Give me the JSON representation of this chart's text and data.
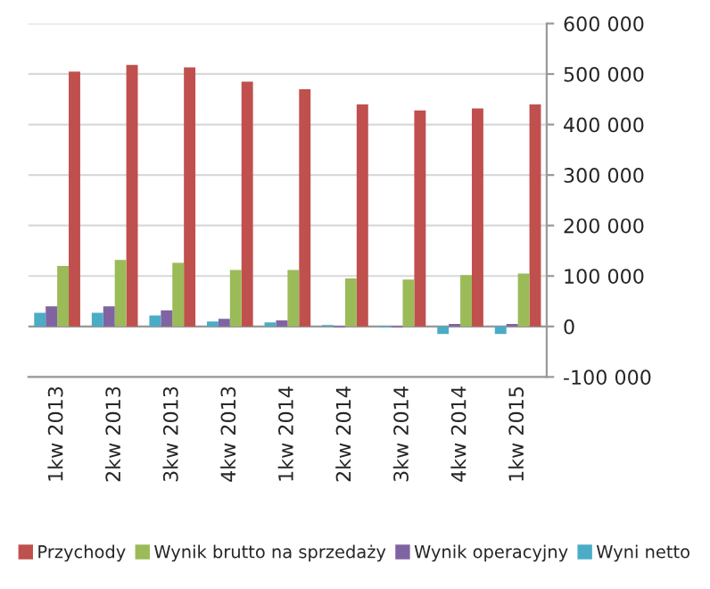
{
  "chart_data": {
    "type": "bar",
    "categories": [
      "1kw 2013",
      "2kw 2013",
      "3kw 2013",
      "4kw 2013",
      "1kw 2014",
      "2kw 2014",
      "3kw 2014",
      "4kw 2014",
      "1kw 2015"
    ],
    "series": [
      {
        "name": "Przychody",
        "color": "#c0504d",
        "values": [
          505000,
          518000,
          513000,
          485000,
          470000,
          440000,
          428000,
          432000,
          440000
        ]
      },
      {
        "name": "Wynik brutto na sprzedaży",
        "color": "#9bbb59",
        "values": [
          120000,
          132000,
          126000,
          112000,
          112000,
          95000,
          93000,
          102000,
          105000
        ]
      },
      {
        "name": "Wynik operacyjny",
        "color": "#8064a2",
        "values": [
          40000,
          40000,
          32000,
          15000,
          12000,
          -2000,
          -2000,
          5000,
          5000
        ]
      },
      {
        "name": "Wyni netto",
        "color": "#4bacc6",
        "values": [
          27000,
          27000,
          22000,
          10000,
          8000,
          3000,
          -2000,
          -15000,
          -15000
        ]
      }
    ],
    "ylim": [
      -100000,
      600000
    ],
    "yticks": [
      {
        "value": -100000,
        "label": "-100 000"
      },
      {
        "value": 0,
        "label": "0"
      },
      {
        "value": 100000,
        "label": "100 000"
      },
      {
        "value": 200000,
        "label": "200 000"
      },
      {
        "value": 300000,
        "label": "300 000"
      },
      {
        "value": 400000,
        "label": "400 000"
      },
      {
        "value": 500000,
        "label": "500 000"
      },
      {
        "value": 600000,
        "label": "600 000"
      }
    ],
    "grid": "y",
    "legend": "bottom"
  }
}
